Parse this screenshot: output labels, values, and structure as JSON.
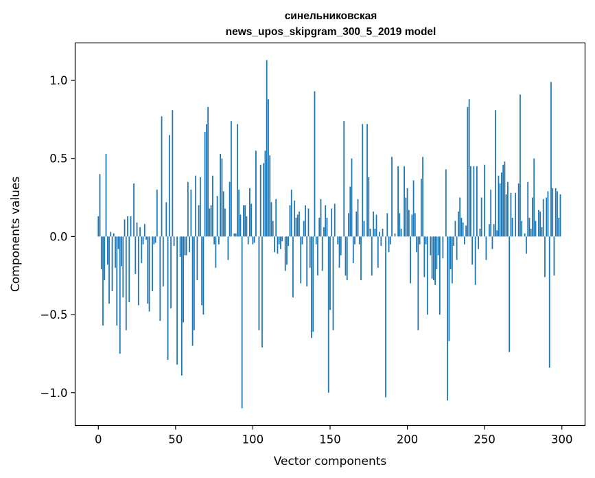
{
  "chart_data": {
    "type": "bar",
    "title_lines": [
      "синельниковская",
      "news_upos_skipgram_300_5_2019 model"
    ],
    "xlabel": "Vector components",
    "ylabel": "Components values",
    "xlim": [
      -15,
      315
    ],
    "ylim": [
      -1.21,
      1.24
    ],
    "xticks": [
      0,
      50,
      100,
      150,
      200,
      250,
      300
    ],
    "yticks": [
      -1.0,
      -0.5,
      0.0,
      0.5,
      1.0
    ],
    "ytick_labels": [
      "−1.0",
      "−0.5",
      "0.0",
      "0.5",
      "1.0"
    ],
    "bar_color": "#1f77b4",
    "grid": false,
    "values": [
      0.13,
      0.4,
      -0.21,
      -0.57,
      -0.28,
      0.53,
      -0.18,
      -0.43,
      0.03,
      -0.35,
      0.02,
      -0.2,
      -0.57,
      -0.08,
      -0.75,
      -0.19,
      -0.39,
      0.11,
      -0.6,
      0.13,
      -0.42,
      0.13,
      0.0,
      0.34,
      -0.24,
      0.09,
      -0.44,
      0.06,
      -0.17,
      -0.05,
      0.08,
      -0.02,
      -0.43,
      -0.48,
      0.0,
      -0.35,
      -0.05,
      -0.04,
      0.3,
      0.0,
      -0.54,
      0.77,
      -0.32,
      0.0,
      0.22,
      -0.79,
      0.65,
      -0.46,
      0.81,
      -0.06,
      0.0,
      -0.82,
      0.0,
      -0.13,
      -0.89,
      -0.55,
      -0.12,
      -0.12,
      0.35,
      -0.1,
      0.3,
      -0.7,
      -0.6,
      0.39,
      -0.28,
      0.2,
      0.38,
      -0.44,
      -0.5,
      0.67,
      0.72,
      0.83,
      0.18,
      0.2,
      0.39,
      -0.05,
      -0.2,
      0.26,
      -0.05,
      0.53,
      0.5,
      0.29,
      0.18,
      0.0,
      -0.15,
      0.35,
      0.74,
      0.0,
      0.02,
      0.02,
      0.72,
      0.3,
      0.14,
      -1.1,
      0.2,
      0.2,
      0.13,
      -0.05,
      0.31,
      0.21,
      -0.05,
      -0.04,
      0.55,
      0.0,
      -0.6,
      0.46,
      -0.71,
      0.47,
      0.55,
      1.13,
      0.88,
      0.52,
      0.22,
      0.1,
      -0.1,
      0.24,
      -0.11,
      -0.05,
      -0.08,
      -0.03,
      0.0,
      -0.22,
      -0.18,
      -0.06,
      0.2,
      0.3,
      -0.39,
      0.23,
      0.12,
      0.14,
      0.16,
      -0.3,
      -0.05,
      0.1,
      0.2,
      -0.32,
      0.18,
      -0.2,
      -0.65,
      -0.61,
      0.93,
      -0.05,
      -0.25,
      0.12,
      0.24,
      -0.22,
      0.06,
      0.2,
      0.12,
      -1.0,
      -0.47,
      0.18,
      -0.6,
      0.21,
      0.0,
      -0.05,
      -0.2,
      -0.12,
      0.0,
      0.74,
      -0.25,
      -0.28,
      0.15,
      0.32,
      0.5,
      -0.17,
      -0.05,
      0.16,
      0.24,
      -0.05,
      -0.28,
      0.72,
      0.1,
      0.0,
      0.72,
      0.38,
      0.05,
      -0.25,
      0.16,
      0.05,
      0.14,
      -0.2,
      0.03,
      -0.06,
      0.05,
      0.0,
      -1.03,
      0.15,
      -0.1,
      -0.05,
      0.51,
      0.0,
      0.02,
      0.0,
      0.45,
      0.15,
      0.05,
      0.0,
      0.45,
      0.25,
      0.31,
      0.17,
      -0.3,
      0.14,
      0.36,
      0.15,
      -0.1,
      -0.6,
      -0.05,
      0.37,
      0.51,
      -0.26,
      -0.05,
      -0.5,
      0.0,
      -0.12,
      -0.27,
      -0.28,
      -0.31,
      -0.21,
      -0.12,
      -0.5,
      0.0,
      -0.14,
      0.0,
      0.43,
      -1.05,
      -0.67,
      -0.21,
      -0.3,
      -0.06,
      0.1,
      -0.15,
      0.16,
      0.25,
      0.12,
      0.09,
      -0.05,
      0.07,
      0.83,
      0.88,
      0.45,
      -0.18,
      0.45,
      -0.31,
      0.45,
      -0.08,
      0.05,
      0.25,
      0.0,
      0.46,
      -0.15,
      0.0,
      0.08,
      0.3,
      -0.08,
      0.08,
      0.81,
      0.04,
      0.39,
      0.34,
      0.41,
      0.46,
      0.48,
      0.27,
      0.35,
      -0.74,
      0.28,
      0.12,
      0.0,
      0.28,
      0.0,
      0.34,
      0.91,
      0.1,
      0.0,
      0.02,
      -0.11,
      0.35,
      0.12,
      0.05,
      0.25,
      0.5,
      0.1,
      0.0,
      0.17,
      0.16,
      0.06,
      0.24,
      -0.26,
      0.25,
      0.29,
      -0.84,
      0.99,
      0.31,
      -0.25,
      0.31,
      0.29,
      0.12,
      0.27
    ]
  }
}
